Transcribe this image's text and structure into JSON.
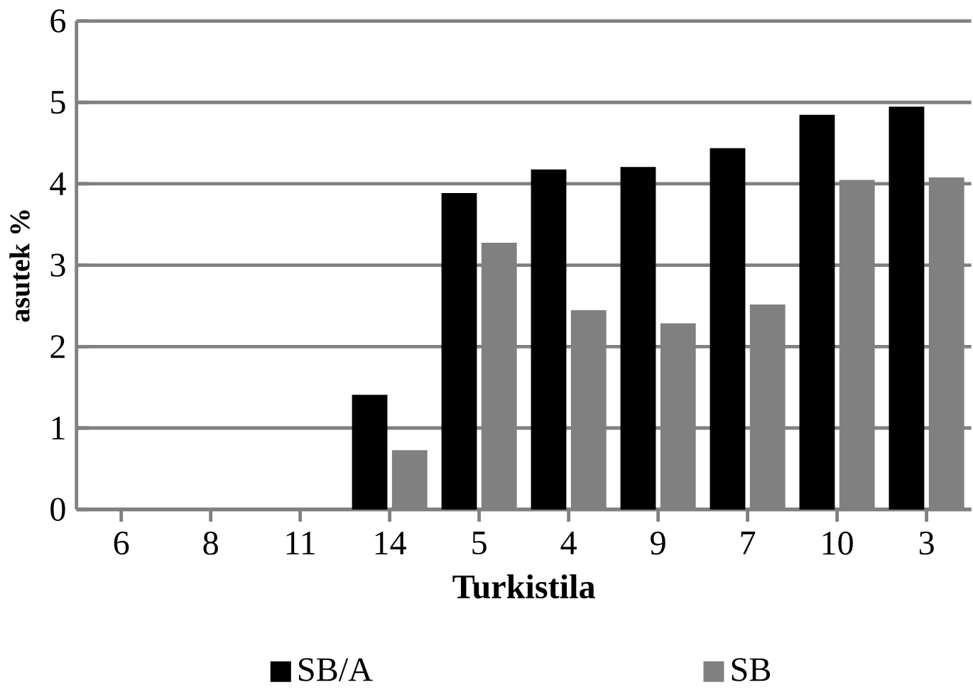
{
  "chart_data": {
    "type": "bar",
    "xlabel": "Turkistila",
    "ylabel": "asutek %",
    "categories": [
      "6",
      "8",
      "11",
      "14",
      "5",
      "4",
      "9",
      "7",
      "10",
      "3"
    ],
    "series": [
      {
        "name": "SB/A",
        "color": "#000000",
        "values": [
          null,
          null,
          null,
          1.4,
          3.88,
          4.17,
          4.2,
          4.43,
          4.84,
          4.94
        ]
      },
      {
        "name": "SB",
        "color": "#808080",
        "values": [
          null,
          null,
          null,
          0.72,
          3.27,
          2.44,
          2.28,
          2.51,
          4.04,
          4.07
        ]
      }
    ],
    "ylim": [
      0,
      6
    ],
    "yticks": [
      0,
      1,
      2,
      3,
      4,
      5,
      6
    ],
    "grid": "y",
    "legend": "bottom"
  }
}
